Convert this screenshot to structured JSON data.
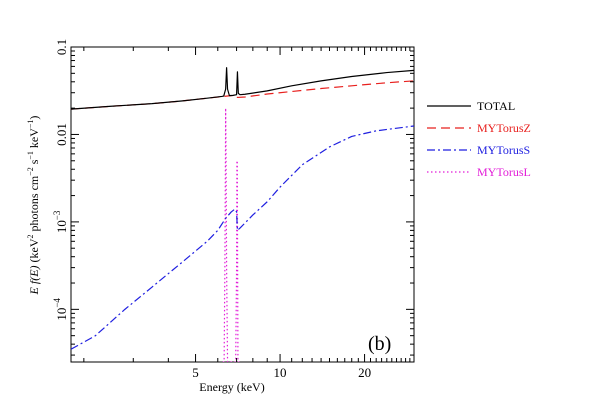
{
  "chart_data": {
    "type": "line",
    "xlabel": "Energy (keV)",
    "ylabel_parts": [
      "E f(E)",
      " (keV",
      "2",
      " photons cm",
      "−2",
      " s",
      "−1",
      " keV",
      "−1",
      ")"
    ],
    "x_scale": "log",
    "y_scale": "log",
    "xlim": [
      1.8,
      30
    ],
    "ylim": [
      2.5e-05,
      0.1
    ],
    "x_ticks": [
      {
        "value": 5,
        "label": "5"
      },
      {
        "value": 10,
        "label": "10"
      },
      {
        "value": 20,
        "label": "20"
      }
    ],
    "y_ticks": [
      {
        "value": 0.0001,
        "base": "10",
        "exp": "−4"
      },
      {
        "value": 0.001,
        "base": "10",
        "exp": "−3"
      },
      {
        "value": 0.01,
        "label": "0.01"
      },
      {
        "value": 0.1,
        "label": "0.1"
      }
    ],
    "annotation": "(b)",
    "legend_position": "right",
    "series": [
      {
        "name": "TOTAL",
        "color": "#000000",
        "dash": "solid",
        "x": [
          1.8,
          2.5,
          3.5,
          4.5,
          5.5,
          6.2,
          6.3,
          6.4,
          6.45,
          6.5,
          6.6,
          6.8,
          7.0,
          7.05,
          7.1,
          7.2,
          7.5,
          9,
          11,
          14,
          18,
          24,
          30
        ],
        "y": [
          0.0195,
          0.021,
          0.0225,
          0.0242,
          0.026,
          0.0272,
          0.0275,
          0.033,
          0.058,
          0.033,
          0.0278,
          0.028,
          0.0285,
          0.052,
          0.0295,
          0.0285,
          0.0288,
          0.0315,
          0.036,
          0.041,
          0.046,
          0.051,
          0.054
        ]
      },
      {
        "name": "MYTorusZ",
        "color": "#e8201e",
        "dash": "long-dash",
        "x": [
          1.8,
          2.5,
          3.5,
          4.5,
          5.5,
          6.5,
          7.0,
          7.05,
          7.5,
          9,
          11,
          14,
          18,
          24,
          30
        ],
        "y": [
          0.0195,
          0.021,
          0.0225,
          0.0242,
          0.026,
          0.0275,
          0.0282,
          0.0265,
          0.0268,
          0.029,
          0.031,
          0.0335,
          0.036,
          0.039,
          0.041
        ]
      },
      {
        "name": "MYTorusS",
        "color": "#1f1fe0",
        "dash": "dash-dot",
        "x": [
          1.8,
          2.2,
          2.8,
          3.5,
          4.5,
          5.5,
          6.0,
          6.4,
          6.7,
          6.9,
          7.0,
          7.05,
          7.2,
          8,
          9,
          10,
          12,
          15,
          18,
          22,
          30
        ],
        "y": [
          3.5e-05,
          5e-05,
          0.0001,
          0.00018,
          0.00035,
          0.0006,
          0.0008,
          0.0011,
          0.0013,
          0.0014,
          0.0013,
          0.0008,
          0.00085,
          0.0012,
          0.0017,
          0.0025,
          0.0045,
          0.0072,
          0.0095,
          0.011,
          0.0125
        ]
      },
      {
        "name": "MYTorusL",
        "color": "#e21fd8",
        "dash": "dotted",
        "x": [
          6.25,
          6.32,
          6.36,
          6.39,
          6.4,
          6.42,
          6.45,
          6.5,
          6.55,
          6.6,
          6.8,
          6.95,
          7.0,
          7.02,
          7.04,
          7.06,
          7.08,
          7.12,
          7.2
        ],
        "y": [
          2.5e-05,
          2.5e-05,
          0.0003,
          0.006,
          0.02,
          0.006,
          0.0003,
          2.5e-05,
          2.5e-05,
          2.5e-05,
          2.5e-05,
          2.5e-05,
          0.0003,
          0.005,
          0.005,
          0.0003,
          2.5e-05,
          2.5e-05,
          2.5e-05
        ]
      }
    ]
  }
}
